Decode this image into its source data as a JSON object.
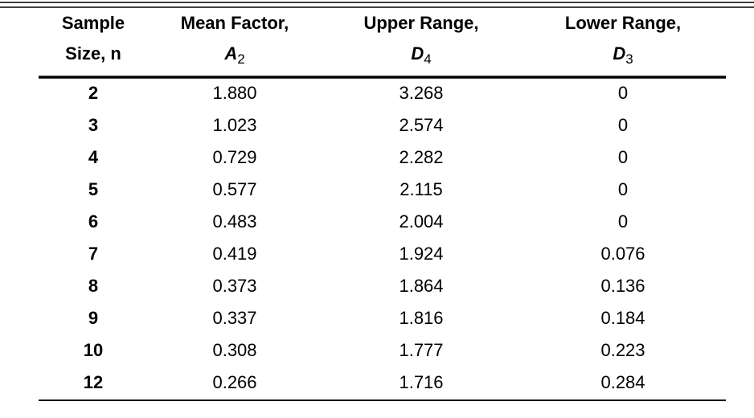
{
  "table": {
    "columns": [
      {
        "title": "Sample",
        "subtitle": "Size, n"
      },
      {
        "title": "Mean Factor,",
        "symbol": "A",
        "subscript": "2"
      },
      {
        "title": "Upper Range,",
        "symbol": "D",
        "subscript": "4"
      },
      {
        "title": "Lower Range,",
        "symbol": "D",
        "subscript": "3"
      }
    ],
    "rows": [
      [
        "2",
        "1.880",
        "3.268",
        "0"
      ],
      [
        "3",
        "1.023",
        "2.574",
        "0"
      ],
      [
        "4",
        "0.729",
        "2.282",
        "0"
      ],
      [
        "5",
        "0.577",
        "2.115",
        "0"
      ],
      [
        "6",
        "0.483",
        "2.004",
        "0"
      ],
      [
        "7",
        "0.419",
        "1.924",
        "0.076"
      ],
      [
        "8",
        "0.373",
        "1.864",
        "0.136"
      ],
      [
        "9",
        "0.337",
        "1.816",
        "0.184"
      ],
      [
        "10",
        "0.308",
        "1.777",
        "0.223"
      ],
      [
        "12",
        "0.266",
        "1.716",
        "0.284"
      ]
    ]
  }
}
